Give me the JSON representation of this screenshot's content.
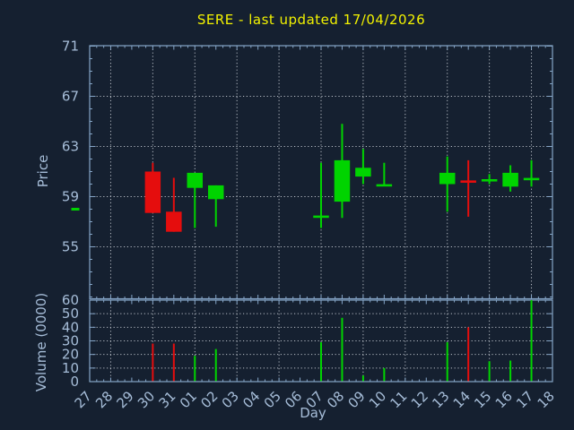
{
  "title": {
    "text": "SERE - last updated 17/04/2026"
  },
  "colors": {
    "background": "#152030",
    "axis_border": "#85a5c7",
    "tick_label": "#a6bdd8",
    "grid": "#c9ced6",
    "up": "#00d400",
    "down": "#e50d0d",
    "title": "#f2f200"
  },
  "chart_data": {
    "type": "candlestick+volume",
    "xlabel": "Day",
    "x_categories": [
      "27",
      "28",
      "29",
      "30",
      "31",
      "01",
      "02",
      "03",
      "04",
      "05",
      "06",
      "07",
      "08",
      "09",
      "10",
      "11",
      "12",
      "13",
      "14",
      "15",
      "16",
      "17",
      "18"
    ],
    "gridline_day_indices": [
      1,
      3,
      5,
      7,
      9,
      11,
      13,
      15,
      17,
      19,
      21
    ],
    "price_panel": {
      "ylabel": "Price",
      "yticks": [
        55,
        59,
        63,
        67,
        71
      ],
      "ylim": [
        50.9,
        71
      ],
      "grid_yticks": [
        55,
        59,
        63,
        67
      ]
    },
    "volume_panel": {
      "ylabel": "Volume (0000)",
      "yticks": [
        0,
        10,
        20,
        30,
        40,
        50,
        60
      ],
      "ylim": [
        0,
        60
      ],
      "grid_yticks": [
        10,
        20,
        30,
        40,
        50
      ]
    },
    "candles": [
      {
        "idx": 3,
        "day": "30",
        "open": 61.0,
        "high": 61.7,
        "low": 57.7,
        "close": 57.7,
        "volume": 28,
        "dir": "down"
      },
      {
        "idx": 4,
        "day": "31",
        "open": 57.8,
        "high": 60.5,
        "low": 56.2,
        "close": 56.2,
        "volume": 28,
        "dir": "down"
      },
      {
        "idx": 5,
        "day": "01",
        "open": 59.7,
        "high": 60.9,
        "low": 56.5,
        "close": 60.9,
        "volume": 19,
        "dir": "up"
      },
      {
        "idx": 6,
        "day": "02",
        "open": 58.8,
        "high": 59.9,
        "low": 56.6,
        "close": 59.9,
        "volume": 24,
        "dir": "up"
      },
      {
        "idx": 11,
        "day": "07",
        "open": 57.4,
        "high": 61.7,
        "low": 56.5,
        "close": 57.4,
        "volume": 29,
        "dir": "up"
      },
      {
        "idx": 12,
        "day": "08",
        "open": 58.6,
        "high": 64.8,
        "low": 57.3,
        "close": 61.9,
        "volume": 47,
        "dir": "up"
      },
      {
        "idx": 13,
        "day": "09",
        "open": 60.6,
        "high": 62.8,
        "low": 60.0,
        "close": 61.3,
        "volume": 4.5,
        "dir": "up"
      },
      {
        "idx": 14,
        "day": "10",
        "open": 59.9,
        "high": 61.7,
        "low": 59.9,
        "close": 59.9,
        "volume": 10,
        "dir": "up"
      },
      {
        "idx": 17,
        "day": "13",
        "open": 60.0,
        "high": 62.2,
        "low": 57.8,
        "close": 60.9,
        "volume": 29,
        "dir": "up"
      },
      {
        "idx": 18,
        "day": "14",
        "open": 60.2,
        "high": 61.9,
        "low": 57.4,
        "close": 60.2,
        "volume": 40,
        "dir": "down"
      },
      {
        "idx": 19,
        "day": "15",
        "open": 60.3,
        "high": 60.8,
        "low": 60.0,
        "close": 60.3,
        "volume": 15,
        "dir": "up"
      },
      {
        "idx": 20,
        "day": "16",
        "open": 59.8,
        "high": 61.5,
        "low": 59.4,
        "close": 60.9,
        "volume": 15.5,
        "dir": "up"
      },
      {
        "idx": 21,
        "day": "17",
        "open": 60.4,
        "high": 61.9,
        "low": 59.8,
        "close": 60.4,
        "volume": 60,
        "dir": "up"
      }
    ],
    "partial_left_marker": {
      "price": 58.0,
      "dir": "up"
    }
  }
}
